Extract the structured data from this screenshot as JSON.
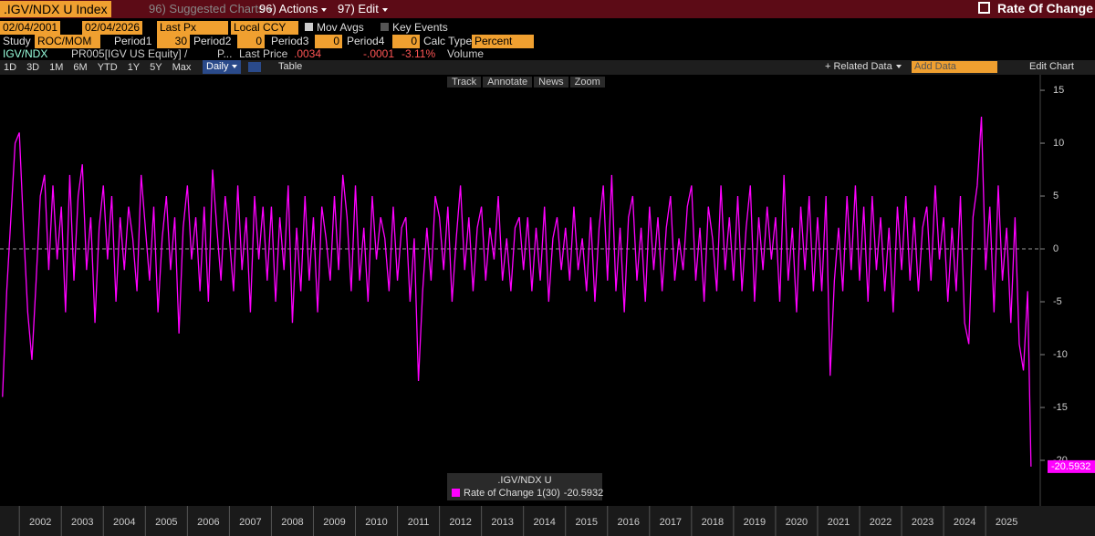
{
  "header": {
    "security": ".IGV/NDX U Index",
    "suggested": "96) Suggested Charts",
    "actions": "96) Actions",
    "edit": "97) Edit",
    "title": "Rate Of Change"
  },
  "settings": {
    "start": "02/04/2001",
    "end": "02/04/2026",
    "price": "Last Px",
    "currency": "Local CCY",
    "mov_avgs": "Mov Avgs",
    "key_events": "Key Events"
  },
  "study": {
    "label": "Study",
    "name": "ROC/MOM",
    "params": [
      {
        "label": "Period1",
        "value": 30
      },
      {
        "label": "Period2",
        "value": 0
      },
      {
        "label": "Period3",
        "value": 0
      },
      {
        "label": "Period4",
        "value": 0
      }
    ],
    "calc_label": "Calc Type",
    "calc": "Percent"
  },
  "quote": {
    "ticker": "IGV/NDX",
    "expr": "PR005[IGV US Equity] /",
    "more": "P...",
    "last_label": "Last Price",
    "last": ".0034",
    "change": "-.0001",
    "pct": "-3.11%",
    "volume": "Volume"
  },
  "periods": [
    "1D",
    "3D",
    "1M",
    "6M",
    "YTD",
    "1Y",
    "5Y",
    "Max"
  ],
  "frequency": "Daily",
  "table": "Table",
  "related": "+ Related Data",
  "add_data": "Add Data",
  "edit_chart": "Edit Chart",
  "chart_tools": [
    "Track",
    "Annotate",
    "News",
    "Zoom"
  ],
  "chart_data": {
    "type": "line",
    "legend_title": ".IGV/NDX U",
    "x": [
      2001.6,
      2001.7,
      2001.8,
      2001.9,
      2002.0,
      2002.1,
      2002.2,
      2002.3,
      2002.4,
      2002.5,
      2002.6,
      2002.7,
      2002.8,
      2002.9,
      2003.0,
      2003.1,
      2003.2,
      2003.3,
      2003.4,
      2003.5,
      2003.6,
      2003.7,
      2003.8,
      2003.9,
      2004.0,
      2004.1,
      2004.2,
      2004.3,
      2004.4,
      2004.5,
      2004.6,
      2004.7,
      2004.8,
      2004.9,
      2005.0,
      2005.1,
      2005.2,
      2005.3,
      2005.4,
      2005.5,
      2005.6,
      2005.7,
      2005.8,
      2005.9,
      2006.0,
      2006.1,
      2006.2,
      2006.3,
      2006.4,
      2006.5,
      2006.6,
      2006.7,
      2006.8,
      2006.9,
      2007.0,
      2007.1,
      2007.2,
      2007.3,
      2007.4,
      2007.5,
      2007.6,
      2007.7,
      2007.8,
      2007.9,
      2008.0,
      2008.1,
      2008.2,
      2008.3,
      2008.4,
      2008.5,
      2008.6,
      2008.7,
      2008.8,
      2008.9,
      2009.0,
      2009.1,
      2009.2,
      2009.3,
      2009.4,
      2009.5,
      2009.6,
      2009.7,
      2009.8,
      2009.9,
      2010.0,
      2010.1,
      2010.2,
      2010.3,
      2010.4,
      2010.5,
      2010.6,
      2010.7,
      2010.8,
      2010.9,
      2011.0,
      2011.1,
      2011.2,
      2011.3,
      2011.4,
      2011.5,
      2011.6,
      2011.7,
      2011.8,
      2011.9,
      2012.0,
      2012.1,
      2012.2,
      2012.3,
      2012.4,
      2012.5,
      2012.6,
      2012.7,
      2012.8,
      2012.9,
      2013.0,
      2013.1,
      2013.2,
      2013.3,
      2013.4,
      2013.5,
      2013.6,
      2013.7,
      2013.8,
      2013.9,
      2014.0,
      2014.1,
      2014.2,
      2014.3,
      2014.4,
      2014.5,
      2014.6,
      2014.7,
      2014.8,
      2014.9,
      2015.0,
      2015.1,
      2015.2,
      2015.3,
      2015.4,
      2015.5,
      2015.6,
      2015.7,
      2015.8,
      2015.9,
      2016.0,
      2016.1,
      2016.2,
      2016.3,
      2016.4,
      2016.5,
      2016.6,
      2016.7,
      2016.8,
      2016.9,
      2017.0,
      2017.1,
      2017.2,
      2017.3,
      2017.4,
      2017.5,
      2017.6,
      2017.7,
      2017.8,
      2017.9,
      2018.0,
      2018.1,
      2018.2,
      2018.3,
      2018.4,
      2018.5,
      2018.6,
      2018.7,
      2018.8,
      2018.9,
      2019.0,
      2019.1,
      2019.2,
      2019.3,
      2019.4,
      2019.5,
      2019.6,
      2019.7,
      2019.8,
      2019.9,
      2020.0,
      2020.1,
      2020.2,
      2020.3,
      2020.4,
      2020.5,
      2020.6,
      2020.7,
      2020.8,
      2020.9,
      2021.0,
      2021.1,
      2021.2,
      2021.3,
      2021.4,
      2021.5,
      2021.6,
      2021.7,
      2021.8,
      2021.9,
      2022.0,
      2022.1,
      2022.2,
      2022.3,
      2022.4,
      2022.5,
      2022.6,
      2022.7,
      2022.8,
      2022.9,
      2023.0,
      2023.1,
      2023.2,
      2023.3,
      2023.4,
      2023.5,
      2023.6,
      2023.7,
      2023.8,
      2023.9,
      2024.0,
      2024.1,
      2024.2,
      2024.3,
      2024.4,
      2024.5,
      2024.6,
      2024.7,
      2024.8,
      2024.9,
      2025.0,
      2025.1,
      2025.2,
      2025.3,
      2025.4,
      2025.5,
      2025.6,
      2025.7,
      2025.8,
      2025.9,
      2026.0,
      2026.08
    ],
    "series": [
      {
        "name": "Rate of Change 1(30)",
        "color": "#ff00ff",
        "values": [
          -14,
          -4,
          3,
          10,
          11,
          2,
          -6,
          -10.5,
          -3,
          5,
          7,
          -2,
          6,
          -1,
          4,
          -6,
          7,
          -3,
          5,
          8,
          -2,
          3,
          -7,
          2,
          6,
          -1,
          5,
          -5,
          3,
          -2,
          4,
          1,
          -4,
          7,
          2,
          -3,
          4,
          -6,
          1,
          5,
          -2,
          3,
          -8,
          2,
          6,
          -1,
          3,
          -4,
          4,
          -5,
          7.5,
          2,
          -3,
          5,
          1,
          -4,
          6,
          -2,
          3,
          -6,
          5,
          -1,
          4,
          -3,
          4,
          -5,
          3,
          -2,
          6,
          -7,
          2,
          -4,
          5,
          -3,
          3,
          -6,
          4,
          1,
          -3,
          5,
          -2,
          7,
          3,
          -4,
          6,
          -3,
          2,
          -5,
          5,
          -1,
          3,
          1,
          -4,
          4,
          -3,
          2,
          3,
          -5,
          1,
          -12.5,
          -4,
          2,
          -3,
          5,
          3,
          -2,
          4,
          -5,
          1,
          6,
          -2,
          3,
          -4,
          2,
          4,
          -3,
          2,
          -1,
          5,
          -3,
          1,
          -4,
          2,
          3,
          -2,
          3,
          -4,
          2,
          -3,
          4,
          -5,
          1,
          3,
          -2,
          2,
          -3,
          4,
          -2,
          1,
          -4,
          3,
          -5,
          2,
          6,
          -3,
          7,
          -4,
          2,
          -6,
          3,
          5,
          -3,
          2,
          -5,
          4,
          -2,
          3,
          -4,
          2,
          5,
          -3,
          1,
          -2,
          4,
          6,
          -3,
          2,
          -5,
          4,
          1,
          -4,
          6,
          -2,
          3,
          -3,
          5,
          -4,
          2,
          6,
          -5,
          3,
          -2,
          4,
          -1,
          3,
          -5,
          7,
          -3,
          2,
          -6,
          4,
          -2,
          5,
          -4,
          3,
          -4,
          5,
          -12,
          -3,
          2,
          -4,
          5,
          -2,
          6,
          -3,
          4,
          -5,
          5,
          -2,
          3,
          -4,
          2,
          -6,
          4,
          -2,
          5,
          -3,
          3,
          -4,
          2,
          4,
          -3,
          6,
          -1,
          3,
          -5,
          2,
          -4,
          5,
          -7,
          -9,
          3,
          6,
          12.5,
          -2,
          4,
          -6,
          6,
          -3,
          2,
          -7,
          3,
          -9,
          -11.5,
          -4,
          -20.5932
        ]
      }
    ],
    "xlim": [
      2001.54,
      2026.3
    ],
    "xticks": [
      2002,
      2003,
      2004,
      2005,
      2006,
      2007,
      2008,
      2009,
      2010,
      2011,
      2012,
      2013,
      2014,
      2015,
      2016,
      2017,
      2018,
      2019,
      2020,
      2021,
      2022,
      2023,
      2024,
      2025
    ],
    "ylim": [
      -24.31,
      16.47
    ],
    "yticks": [
      15,
      10,
      5,
      0,
      -5,
      -10,
      -15,
      -20
    ]
  }
}
